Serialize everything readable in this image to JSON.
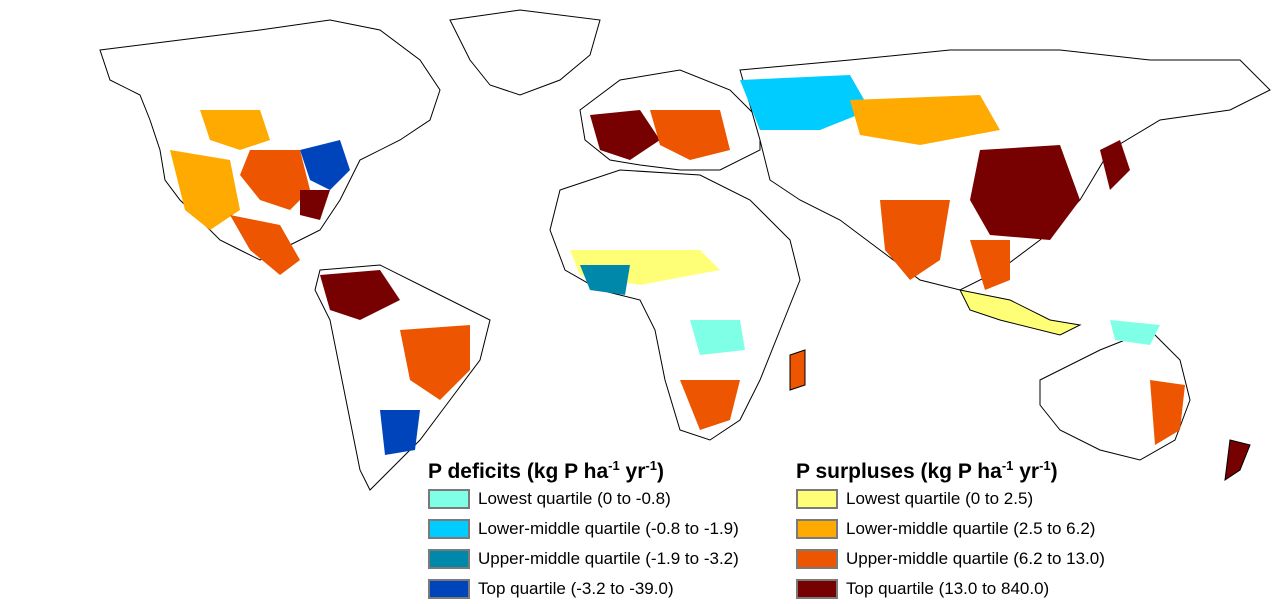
{
  "legend": {
    "deficits": {
      "title": "P deficits (kg P ha",
      "sup1": "-1",
      "mid": " yr",
      "sup2": "-1",
      "close": ")",
      "items": [
        {
          "label": "Lowest quartile (0 to -0.8)",
          "color": "#7fffe6"
        },
        {
          "label": "Lower-middle quartile (-0.8 to -1.9)",
          "color": "#00ccff"
        },
        {
          "label": "Upper-middle quartile (-1.9 to -3.2)",
          "color": "#0088aa"
        },
        {
          "label": "Top quartile (-3.2 to -39.0)",
          "color": "#0044bb"
        }
      ]
    },
    "surpluses": {
      "title": "P surpluses (kg P ha",
      "sup1": "-1",
      "mid": " yr",
      "sup2": "-1",
      "close": ")",
      "items": [
        {
          "label": "Lowest quartile (0 to 2.5)",
          "color": "#ffff77"
        },
        {
          "label": "Lower-middle quartile (2.5 to 6.2)",
          "color": "#ffaa00"
        },
        {
          "label": "Upper-middle quartile (6.2 to 13.0)",
          "color": "#ee5500"
        },
        {
          "label": "Top quartile (13.0 to 840.0)",
          "color": "#770000"
        }
      ]
    }
  }
}
